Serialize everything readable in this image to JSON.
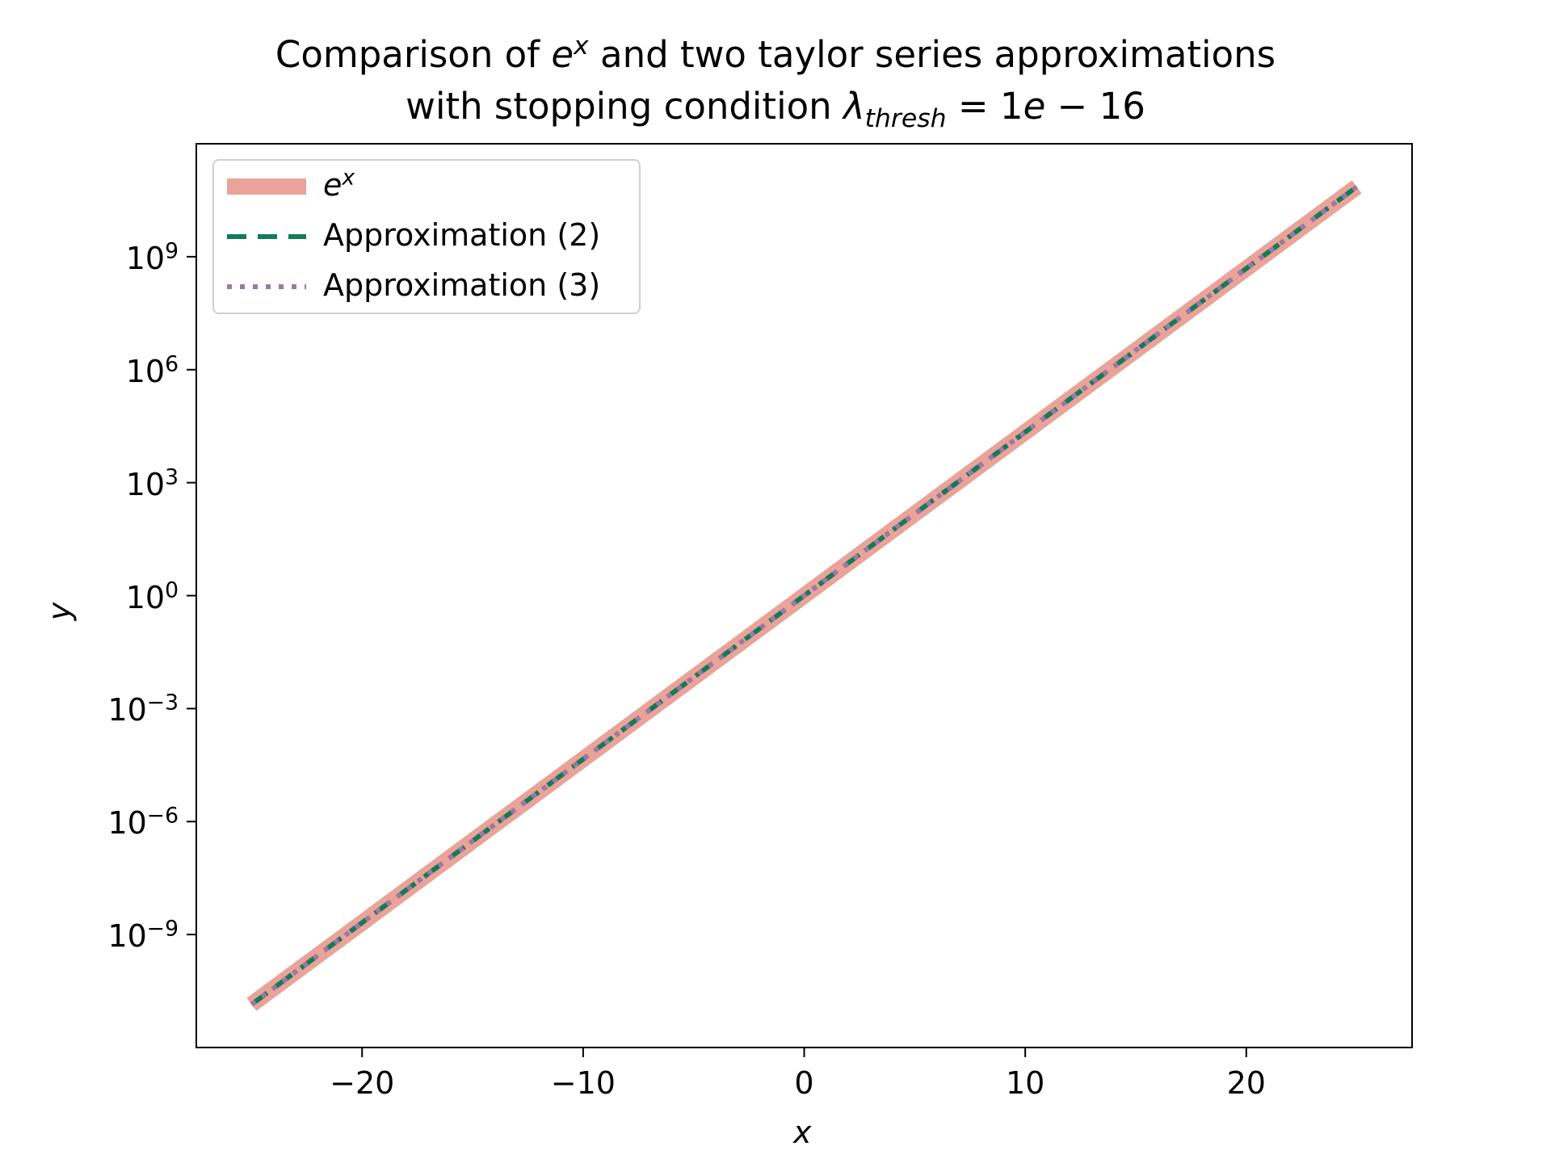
{
  "title": {
    "prefix": "Comparison of ",
    "fn_base": "e",
    "fn_exp": "x",
    "suffix": " and two taylor series approximations",
    "line2_prefix": "with stopping condition ",
    "lambda": "λ",
    "lambda_sub": "thresh",
    "line2_suffix": " = 1",
    "e_letter": "e",
    "tail": " − 16"
  },
  "chart_data": {
    "type": "line",
    "title": "Comparison of e^x and two taylor series approximations with stopping condition λ_thresh = 1e − 16",
    "xlabel": "x",
    "ylabel": "y",
    "y_scale": "log",
    "xlim": [
      -27.5,
      27.5
    ],
    "ylim_exponent": [
      -12.0,
      12.0
    ],
    "x_ticks": [
      -20,
      -10,
      0,
      10,
      20
    ],
    "x_tick_labels": [
      "−20",
      "−10",
      "0",
      "10",
      "20"
    ],
    "y_ticks_exponent": [
      -9,
      -6,
      -3,
      0,
      3,
      6,
      9
    ],
    "y_tick_labels": [
      {
        "base": "10",
        "exp": "−9"
      },
      {
        "base": "10",
        "exp": "−6"
      },
      {
        "base": "10",
        "exp": "−3"
      },
      {
        "base": "10",
        "exp": "0"
      },
      {
        "base": "10",
        "exp": "3"
      },
      {
        "base": "10",
        "exp": "6"
      },
      {
        "base": "10",
        "exp": "9"
      }
    ],
    "x": [
      -25,
      25
    ],
    "series": [
      {
        "name": "e^x",
        "label_base": "e",
        "label_exp": "x",
        "color": "#e9a399",
        "style": "solid",
        "y_exponent": [
          -10.857,
          10.857
        ]
      },
      {
        "name": "Approximation (2)",
        "label": "Approximation (2)",
        "color": "#137a5a",
        "style": "dashed",
        "y_exponent": [
          -10.857,
          10.857
        ]
      },
      {
        "name": "Approximation (3)",
        "label": "Approximation (3)",
        "color": "#9b7aa1",
        "style": "dotted",
        "y_exponent": [
          -10.857,
          10.857
        ]
      }
    ],
    "legend_position": "upper-left",
    "grid": false
  }
}
